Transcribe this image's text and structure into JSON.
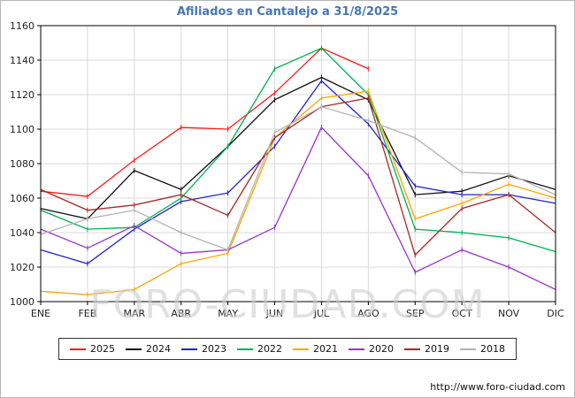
{
  "page": {
    "title": "Afiliados en Cantalejo a 31/8/2025",
    "watermark": "FORO-CIUDAD.COM",
    "footer_url": "http://www.foro-ciudad.com",
    "colors": {
      "title": "#4576b5",
      "watermark": "#cccccc",
      "grid": "#d9d9d9",
      "axis": "#000000"
    }
  },
  "chart_data": {
    "type": "line",
    "title": "Afiliados en Cantalejo a 31/8/2025",
    "xlabel": "",
    "ylabel": "",
    "categories": [
      "ENE",
      "FEB",
      "MAR",
      "ABR",
      "MAY",
      "JUN",
      "JUL",
      "AGO",
      "SEP",
      "OCT",
      "NOV",
      "DIC"
    ],
    "ylim": [
      1000,
      1160
    ],
    "ytick_step": 20,
    "grid": true,
    "legend_position": "bottom",
    "series": [
      {
        "name": "2025",
        "color": "#ff1a1a",
        "values": [
          1064,
          1061,
          1082,
          1101,
          1100,
          1121,
          1147,
          1135
        ]
      },
      {
        "name": "2024",
        "color": "#111111",
        "values": [
          1054,
          1048,
          1076,
          1065,
          1090,
          1117,
          1130,
          1117,
          1062,
          1064,
          1073,
          1065
        ]
      },
      {
        "name": "2023",
        "color": "#2222cc",
        "values": [
          1030,
          1022,
          1042,
          1058,
          1063,
          1090,
          1128,
          1103,
          1067,
          1062,
          1062,
          1057
        ]
      },
      {
        "name": "2022",
        "color": "#00b050",
        "values": [
          1053,
          1042,
          1043,
          1060,
          1090,
          1135,
          1147,
          1120,
          1042,
          1040,
          1037,
          1029
        ]
      },
      {
        "name": "2021",
        "color": "#ffa500",
        "values": [
          1006,
          1004,
          1007,
          1022,
          1028,
          1095,
          1118,
          1122,
          1048,
          1057,
          1068,
          1060
        ]
      },
      {
        "name": "2020",
        "color": "#9933cc",
        "values": [
          1042,
          1031,
          1044,
          1028,
          1030,
          1043,
          1101,
          1073,
          1017,
          1030,
          1020,
          1007
        ]
      },
      {
        "name": "2019",
        "color": "#a52a2a",
        "values": [
          1065,
          1053,
          1056,
          1062,
          1050,
          1095,
          1113,
          1118,
          1027,
          1054,
          1062,
          1040
        ]
      },
      {
        "name": "2018",
        "color": "#b3b3b3",
        "values": [
          1039,
          1048,
          1053,
          1040,
          1030,
          1098,
          1113,
          1105,
          1095,
          1075,
          1074,
          1062
        ]
      }
    ]
  }
}
